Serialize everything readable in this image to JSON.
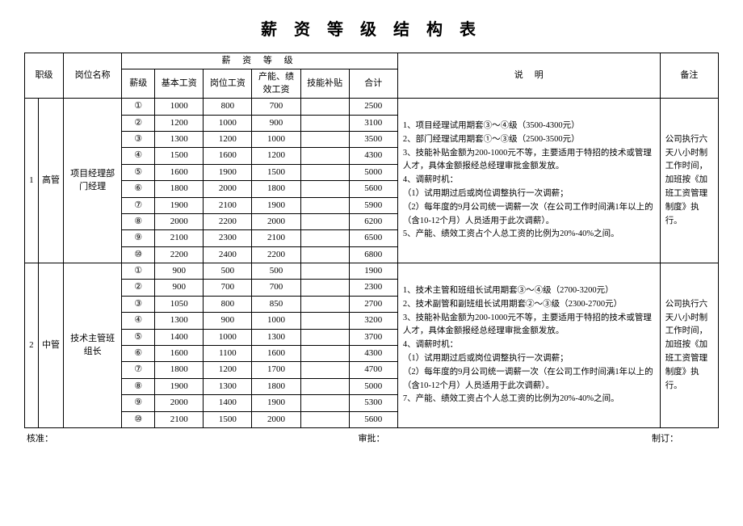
{
  "title": "薪 资 等 级 结 构 表",
  "headers": {
    "rank": "职级",
    "position": "岗位名称",
    "salaryLevel": "薪 资 等 级",
    "desc": "说",
    "desc2": "明",
    "notes": "备注",
    "grade": "薪级",
    "baseSalary": "基本工资",
    "posSalary": "岗位工资",
    "perfSalary": "产能、绩效工资",
    "skillBonus": "技能补贴",
    "total": "合计"
  },
  "groups": [
    {
      "num": "1",
      "level": "高管",
      "position": "项目经理部门经理",
      "rows": [
        {
          "g": "①",
          "base": "1000",
          "pos": "800",
          "perf": "700",
          "skill": "",
          "total": "2500"
        },
        {
          "g": "②",
          "base": "1200",
          "pos": "1000",
          "perf": "900",
          "skill": "",
          "total": "3100"
        },
        {
          "g": "③",
          "base": "1300",
          "pos": "1200",
          "perf": "1000",
          "skill": "",
          "total": "3500"
        },
        {
          "g": "④",
          "base": "1500",
          "pos": "1600",
          "perf": "1200",
          "skill": "",
          "total": "4300"
        },
        {
          "g": "⑤",
          "base": "1600",
          "pos": "1900",
          "perf": "1500",
          "skill": "",
          "total": "5000"
        },
        {
          "g": "⑥",
          "base": "1800",
          "pos": "2000",
          "perf": "1800",
          "skill": "",
          "total": "5600"
        },
        {
          "g": "⑦",
          "base": "1900",
          "pos": "2100",
          "perf": "1900",
          "skill": "",
          "total": "5900"
        },
        {
          "g": "⑧",
          "base": "2000",
          "pos": "2200",
          "perf": "2000",
          "skill": "",
          "total": "6200"
        },
        {
          "g": "⑨",
          "base": "2100",
          "pos": "2300",
          "perf": "2100",
          "skill": "",
          "total": "6500"
        },
        {
          "g": "⑩",
          "base": "2200",
          "pos": "2400",
          "perf": "2200",
          "skill": "",
          "total": "6800"
        }
      ],
      "desc": "1、项目经理试用期套③～④级（3500-4300元）\n2、部门经理试用期套①～③级（2500-3500元）\n3、技能补贴金额为200-1000元不等，主要适用于特招的技术或管理人才，具体金额报经总经理审批金额发放。\n4、调薪时机：\n（1）试用期过后或岗位调整执行一次调薪；\n（2）每年度的9月公司统一调薪一次（在公司工作时间满1年以上的（含10-12个月）人员适用于此次调薪）。\n5、产能、绩效工资占个人总工资的比例为20%-40%之间。",
      "notes": "公司执行六天八小时制工作时间，加班按《加班工资管理制度》执行。"
    },
    {
      "num": "2",
      "level": "中管",
      "position": "技术主管班组长",
      "rows": [
        {
          "g": "①",
          "base": "900",
          "pos": "500",
          "perf": "500",
          "skill": "",
          "total": "1900"
        },
        {
          "g": "②",
          "base": "900",
          "pos": "700",
          "perf": "700",
          "skill": "",
          "total": "2300"
        },
        {
          "g": "③",
          "base": "1050",
          "pos": "800",
          "perf": "850",
          "skill": "",
          "total": "2700"
        },
        {
          "g": "④",
          "base": "1300",
          "pos": "900",
          "perf": "1000",
          "skill": "",
          "total": "3200"
        },
        {
          "g": "⑤",
          "base": "1400",
          "pos": "1000",
          "perf": "1300",
          "skill": "",
          "total": "3700"
        },
        {
          "g": "⑥",
          "base": "1600",
          "pos": "1100",
          "perf": "1600",
          "skill": "",
          "total": "4300"
        },
        {
          "g": "⑦",
          "base": "1800",
          "pos": "1200",
          "perf": "1700",
          "skill": "",
          "total": "4700"
        },
        {
          "g": "⑧",
          "base": "1900",
          "pos": "1300",
          "perf": "1800",
          "skill": "",
          "total": "5000"
        },
        {
          "g": "⑨",
          "base": "2000",
          "pos": "1400",
          "perf": "1900",
          "skill": "",
          "total": "5300"
        },
        {
          "g": "⑩",
          "base": "2100",
          "pos": "1500",
          "perf": "2000",
          "skill": "",
          "total": "5600"
        }
      ],
      "desc": "1、技术主管和班组长试用期套③～④级（2700-3200元）\n2、技术副管和副班组长试用期套②～③级（2300-2700元）\n3、技能补贴金额为200-1000元不等，主要适用于特招的技术或管理人才，具体金额报经总经理审批金额发放。\n4、调薪时机：\n（1）试用期过后或岗位调整执行一次调薪；\n（2）每年度的9月公司统一调薪一次（在公司工作时间满1年以上的（含10-12个月）人员适用于此次调薪）。\n7、产能、绩效工资占个人总工资的比例为20%-40%之间。",
      "notes": "公司执行六天八小时制工作时间，加班按《加班工资管理制度》执行。"
    }
  ],
  "footer": {
    "approve": "核准：",
    "review": "审批：",
    "create": "制订："
  }
}
